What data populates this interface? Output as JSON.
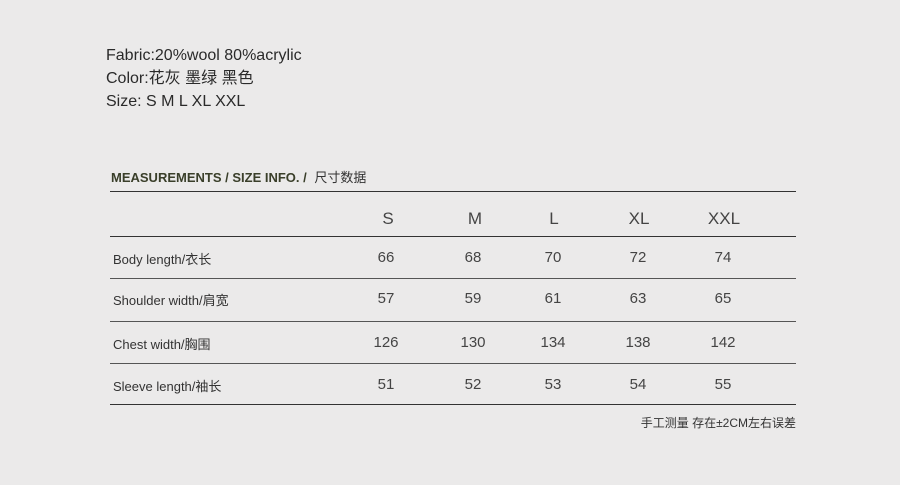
{
  "info": {
    "fabric": "Fabric:20%wool 80%acrylic",
    "color": "Color:花灰 墨绿 黑色",
    "size": "Size: S M L XL XXL"
  },
  "heading": {
    "en1": "MEASUREMENTS / ",
    "en2": " SIZE INFO. / ",
    "cn": "尺寸数据"
  },
  "table": {
    "columns": [
      "S",
      "M",
      "L",
      "XL",
      "XXL"
    ],
    "rows": [
      {
        "label": "Body length/衣长",
        "values": [
          "66",
          "68",
          "70",
          "72",
          "74"
        ]
      },
      {
        "label": "Shoulder width/肩宽",
        "values": [
          "57",
          "59",
          "61",
          "63",
          "65"
        ]
      },
      {
        "label": "Chest width/胸围",
        "values": [
          "126",
          "130",
          "134",
          "138",
          "142"
        ]
      },
      {
        "label": "Sleeve length/袖长",
        "values": [
          "51",
          "52",
          "53",
          "54",
          "55"
        ]
      }
    ]
  },
  "note": "手工测量 存在±2CM左右误差"
}
